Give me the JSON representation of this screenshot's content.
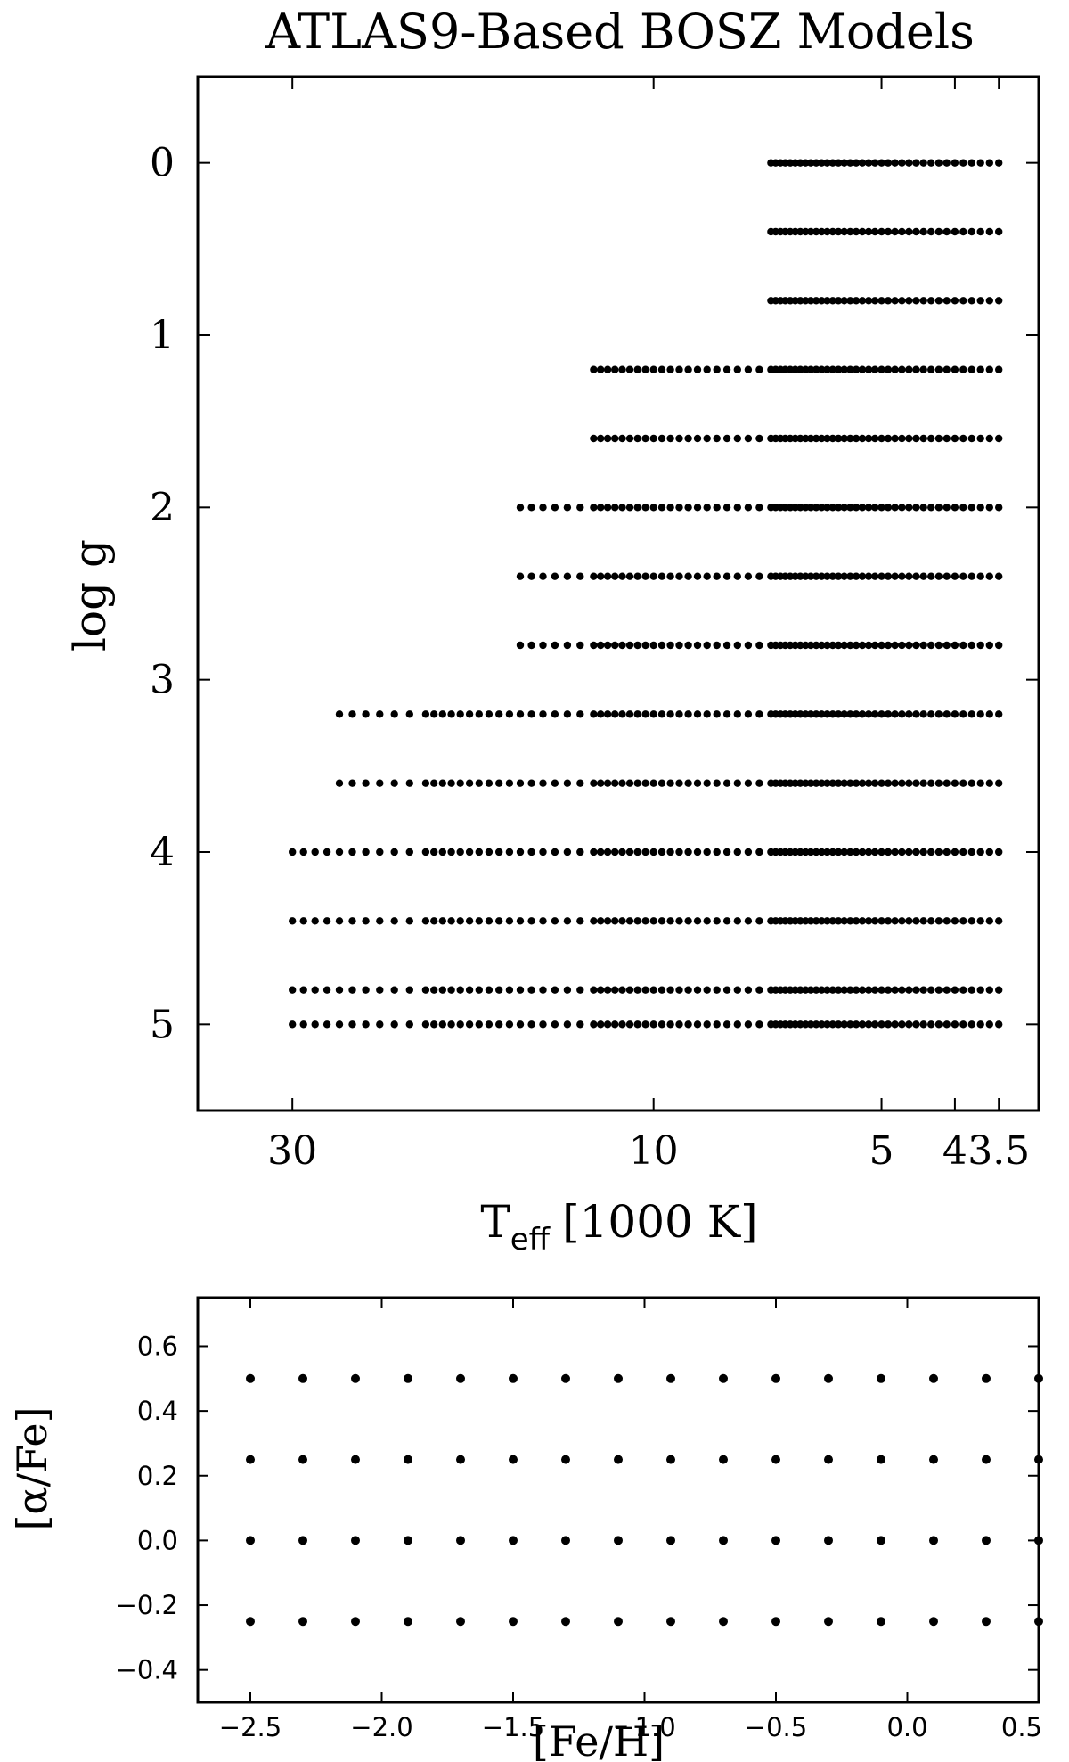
{
  "chart_data": [
    {
      "type": "scatter",
      "title": "ATLAS9-Based BOSZ Models",
      "xlabel": "T_eff [1000 K]",
      "xlabel_main": "T",
      "xlabel_sub": "eff",
      "xlabel_unit": "[1000 K]",
      "ylabel": "log g",
      "xscale": "log",
      "x_inverted": true,
      "y_inverted": true,
      "xlim": [
        40,
        3.1
      ],
      "ylim": [
        -0.5,
        5.5
      ],
      "x_ticks": [
        30,
        10,
        5,
        4,
        3.5
      ],
      "x_tick_labels": [
        "30",
        "10",
        "5",
        "4",
        "3.5"
      ],
      "y_ticks": [
        0,
        1,
        2,
        3,
        4,
        5
      ],
      "y_tick_labels": [
        "0",
        "1",
        "2",
        "3",
        "4",
        "5"
      ],
      "grid": false,
      "marker_color": "#000000",
      "logg_rows": [
        {
          "logg": 0.0,
          "teff_min": 7.0,
          "teff_max": 3.5
        },
        {
          "logg": 0.4,
          "teff_min": 7.0,
          "teff_max": 3.5
        },
        {
          "logg": 0.8,
          "teff_min": 7.0,
          "teff_max": 3.5
        },
        {
          "logg": 1.2,
          "teff_min": 12.0,
          "teff_max": 3.5
        },
        {
          "logg": 1.6,
          "teff_min": 12.0,
          "teff_max": 3.5
        },
        {
          "logg": 2.0,
          "teff_min": 15.0,
          "teff_max": 3.5
        },
        {
          "logg": 2.4,
          "teff_min": 15.0,
          "teff_max": 3.5
        },
        {
          "logg": 2.8,
          "teff_min": 15.0,
          "teff_max": 3.5
        },
        {
          "logg": 3.2,
          "teff_min": 26.0,
          "teff_max": 3.5
        },
        {
          "logg": 3.6,
          "teff_min": 26.0,
          "teff_max": 3.5
        },
        {
          "logg": 4.0,
          "teff_min": 30.0,
          "teff_max": 3.5
        },
        {
          "logg": 4.4,
          "teff_min": 30.0,
          "teff_max": 3.5
        },
        {
          "logg": 4.8,
          "teff_min": 30.0,
          "teff_max": 3.5
        },
        {
          "logg": 5.0,
          "teff_min": 30.0,
          "teff_max": 3.5
        }
      ],
      "teff_grid_steps": [
        {
          "from": 3.5,
          "to": 7.0,
          "step": 0.1
        },
        {
          "from": 7.25,
          "to": 12.0,
          "step": 0.25
        },
        {
          "from": 12.5,
          "to": 20.0,
          "step": 0.5
        },
        {
          "from": 21.0,
          "to": 30.0,
          "step": 1.0
        }
      ]
    },
    {
      "type": "scatter",
      "xlabel": "[Fe/H]",
      "ylabel": "[α/Fe]",
      "xlim": [
        -2.7,
        0.5
      ],
      "ylim": [
        -0.5,
        0.75
      ],
      "x_ticks": [
        -2.5,
        -2.0,
        -1.5,
        -1.0,
        -0.5,
        0.0,
        0.5
      ],
      "x_tick_labels": [
        "−2.5",
        "−2.0",
        "−1.5",
        "−1.0",
        "−0.5",
        "0.0",
        "0.5"
      ],
      "y_ticks": [
        -0.4,
        -0.2,
        0.0,
        0.2,
        0.4,
        0.6
      ],
      "y_tick_labels": [
        "−0.4",
        "−0.2",
        "0.0",
        "0.2",
        "0.4",
        "0.6"
      ],
      "grid": false,
      "marker_color": "#000000",
      "feh_values": [
        -2.5,
        -2.3,
        -2.1,
        -1.9,
        -1.7,
        -1.5,
        -1.3,
        -1.1,
        -0.9,
        -0.7,
        -0.5,
        -0.3,
        -0.1,
        0.1,
        0.3,
        0.5
      ],
      "alpha_values": [
        -0.25,
        0.0,
        0.25,
        0.5
      ]
    }
  ]
}
